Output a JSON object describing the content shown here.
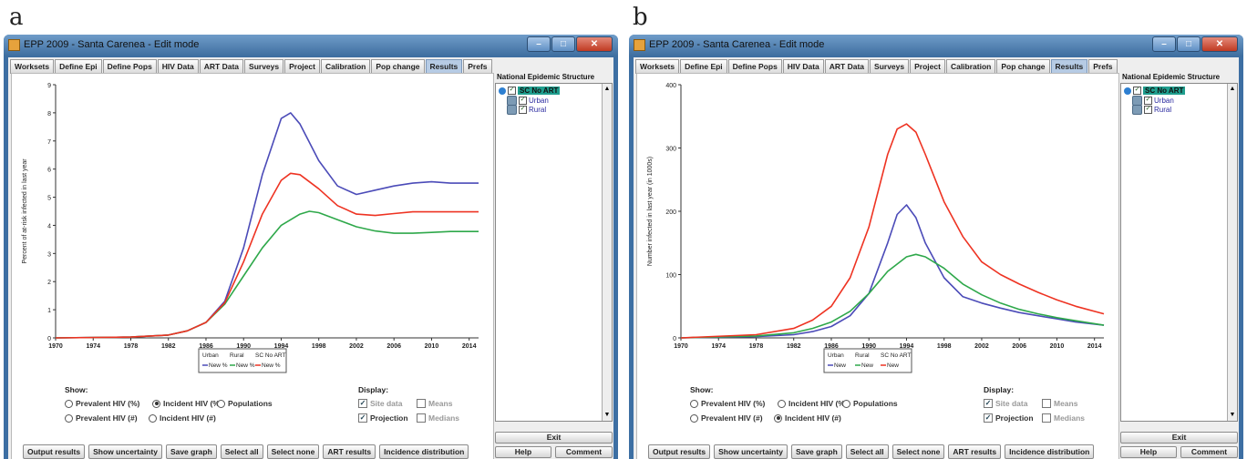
{
  "panels": [
    {
      "letter": "a",
      "window_title": "EPP 2009 - Santa Carenea - Edit mode",
      "tabs": [
        "Worksets",
        "Define Epi",
        "Define Pops",
        "HIV Data",
        "ART Data",
        "Surveys",
        "Project",
        "Calibration",
        "Pop change",
        "Results",
        "Prefs"
      ],
      "active_tab": "Results",
      "tree_title": "National Epidemic Structure",
      "tree_root": "SC No ART",
      "tree_children": [
        "Urban",
        "Rural"
      ],
      "show_label": "Show:",
      "show_options": [
        "Prevalent HIV (%)",
        "Incident HIV (%)",
        "Populations",
        "Prevalent HIV (#)",
        "Incident HIV (#)"
      ],
      "show_selected": "Incident HIV (%)",
      "display_label": "Display:",
      "display_options": [
        {
          "label": "Site data",
          "checked": true,
          "dim": true
        },
        {
          "label": "Means",
          "checked": false,
          "dim": true
        },
        {
          "label": "Projection",
          "checked": true,
          "dim": false
        },
        {
          "label": "Medians",
          "checked": false,
          "dim": true
        }
      ],
      "buttons": [
        "Output results",
        "Show uncertainty",
        "Save graph",
        "Select all",
        "Select none",
        "ART results",
        "Incidence distribution"
      ],
      "right_buttons": {
        "exit": "Exit",
        "help": "Help",
        "comment": "Comment"
      },
      "chart_data": {
        "type": "line",
        "ylabel": "Percent of at-risk infected in last year",
        "xlim": [
          1970,
          2015
        ],
        "ylim": [
          0,
          9
        ],
        "xticks": [
          1970,
          1974,
          1978,
          1982,
          1986,
          1990,
          1994,
          1998,
          2002,
          2006,
          2010,
          2014
        ],
        "yticks": [
          0,
          1,
          2,
          3,
          4,
          5,
          6,
          7,
          8,
          9
        ],
        "legend_headers": [
          "Urban",
          "Rural",
          "SC No ART"
        ],
        "series": [
          {
            "name": "New %",
            "color": "#4b4bb8",
            "points": [
              [
                1970,
                0
              ],
              [
                1978,
                0.03
              ],
              [
                1982,
                0.1
              ],
              [
                1984,
                0.25
              ],
              [
                1986,
                0.55
              ],
              [
                1988,
                1.3
              ],
              [
                1990,
                3.2
              ],
              [
                1992,
                5.8
              ],
              [
                1994,
                7.8
              ],
              [
                1995,
                8.0
              ],
              [
                1996,
                7.6
              ],
              [
                1998,
                6.3
              ],
              [
                2000,
                5.4
              ],
              [
                2002,
                5.1
              ],
              [
                2004,
                5.25
              ],
              [
                2006,
                5.4
              ],
              [
                2008,
                5.5
              ],
              [
                2010,
                5.55
              ],
              [
                2012,
                5.5
              ],
              [
                2015,
                5.5
              ]
            ]
          },
          {
            "name": "New %",
            "color": "#2ea84a",
            "points": [
              [
                1970,
                0
              ],
              [
                1978,
                0.03
              ],
              [
                1982,
                0.1
              ],
              [
                1984,
                0.25
              ],
              [
                1986,
                0.55
              ],
              [
                1988,
                1.2
              ],
              [
                1990,
                2.2
              ],
              [
                1992,
                3.2
              ],
              [
                1994,
                4.0
              ],
              [
                1996,
                4.4
              ],
              [
                1997,
                4.5
              ],
              [
                1998,
                4.45
              ],
              [
                2000,
                4.2
              ],
              [
                2002,
                3.95
              ],
              [
                2004,
                3.8
              ],
              [
                2006,
                3.72
              ],
              [
                2008,
                3.72
              ],
              [
                2010,
                3.75
              ],
              [
                2012,
                3.78
              ],
              [
                2015,
                3.78
              ]
            ]
          },
          {
            "name": "New %",
            "color": "#ee3322",
            "points": [
              [
                1970,
                0
              ],
              [
                1978,
                0.03
              ],
              [
                1982,
                0.1
              ],
              [
                1984,
                0.25
              ],
              [
                1986,
                0.55
              ],
              [
                1988,
                1.25
              ],
              [
                1990,
                2.7
              ],
              [
                1992,
                4.4
              ],
              [
                1994,
                5.6
              ],
              [
                1995,
                5.85
              ],
              [
                1996,
                5.8
              ],
              [
                1998,
                5.3
              ],
              [
                2000,
                4.7
              ],
              [
                2002,
                4.4
              ],
              [
                2004,
                4.35
              ],
              [
                2006,
                4.42
              ],
              [
                2008,
                4.48
              ],
              [
                2010,
                4.48
              ],
              [
                2012,
                4.48
              ],
              [
                2015,
                4.48
              ]
            ]
          }
        ]
      }
    },
    {
      "letter": "b",
      "window_title": "EPP 2009 - Santa Carenea - Edit mode",
      "tabs": [
        "Worksets",
        "Define Epi",
        "Define Pops",
        "HIV Data",
        "ART Data",
        "Surveys",
        "Project",
        "Calibration",
        "Pop change",
        "Results",
        "Prefs"
      ],
      "active_tab": "Results",
      "tree_title": "National Epidemic Structure",
      "tree_root": "SC No ART",
      "tree_children": [
        "Urban",
        "Rural"
      ],
      "show_label": "Show:",
      "show_options": [
        "Prevalent HIV (%)",
        "Incident HIV (%)",
        "Populations",
        "Prevalent HIV (#)",
        "Incident HIV (#)"
      ],
      "show_selected": "Incident HIV (#)",
      "display_label": "Display:",
      "display_options": [
        {
          "label": "Site data",
          "checked": true,
          "dim": true
        },
        {
          "label": "Means",
          "checked": false,
          "dim": true
        },
        {
          "label": "Projection",
          "checked": true,
          "dim": false
        },
        {
          "label": "Medians",
          "checked": false,
          "dim": true
        }
      ],
      "buttons": [
        "Output results",
        "Show uncertainty",
        "Save graph",
        "Select all",
        "Select none",
        "ART results",
        "Incidence distribution"
      ],
      "right_buttons": {
        "exit": "Exit",
        "help": "Help",
        "comment": "Comment"
      },
      "chart_data": {
        "type": "line",
        "ylabel": "Number infected in last year (in 1000s)",
        "xlim": [
          1970,
          2015
        ],
        "ylim": [
          0,
          400
        ],
        "xticks": [
          1970,
          1974,
          1978,
          1982,
          1986,
          1990,
          1994,
          1998,
          2002,
          2006,
          2010,
          2014
        ],
        "yticks": [
          0,
          100,
          200,
          300,
          400
        ],
        "legend_headers": [
          "Urban",
          "Rural",
          "SC No ART"
        ],
        "series": [
          {
            "name": "New",
            "color": "#4b4bb8",
            "points": [
              [
                1970,
                0
              ],
              [
                1978,
                2
              ],
              [
                1982,
                5
              ],
              [
                1984,
                10
              ],
              [
                1986,
                18
              ],
              [
                1988,
                35
              ],
              [
                1990,
                70
              ],
              [
                1992,
                150
              ],
              [
                1993,
                195
              ],
              [
                1994,
                210
              ],
              [
                1995,
                190
              ],
              [
                1996,
                150
              ],
              [
                1998,
                95
              ],
              [
                2000,
                65
              ],
              [
                2002,
                55
              ],
              [
                2004,
                47
              ],
              [
                2006,
                40
              ],
              [
                2008,
                35
              ],
              [
                2010,
                30
              ],
              [
                2012,
                25
              ],
              [
                2015,
                20
              ]
            ]
          },
          {
            "name": "New",
            "color": "#2ea84a",
            "points": [
              [
                1970,
                0
              ],
              [
                1978,
                3
              ],
              [
                1982,
                8
              ],
              [
                1984,
                15
              ],
              [
                1986,
                25
              ],
              [
                1988,
                42
              ],
              [
                1990,
                70
              ],
              [
                1992,
                105
              ],
              [
                1994,
                128
              ],
              [
                1995,
                132
              ],
              [
                1996,
                128
              ],
              [
                1998,
                110
              ],
              [
                2000,
                85
              ],
              [
                2002,
                68
              ],
              [
                2004,
                55
              ],
              [
                2006,
                45
              ],
              [
                2008,
                38
              ],
              [
                2010,
                32
              ],
              [
                2012,
                27
              ],
              [
                2015,
                20
              ]
            ]
          },
          {
            "name": "New",
            "color": "#ee3322",
            "points": [
              [
                1970,
                0
              ],
              [
                1978,
                5
              ],
              [
                1982,
                15
              ],
              [
                1984,
                28
              ],
              [
                1986,
                50
              ],
              [
                1988,
                95
              ],
              [
                1990,
                175
              ],
              [
                1992,
                290
              ],
              [
                1993,
                330
              ],
              [
                1994,
                338
              ],
              [
                1995,
                325
              ],
              [
                1996,
                290
              ],
              [
                1998,
                215
              ],
              [
                2000,
                160
              ],
              [
                2002,
                120
              ],
              [
                2004,
                100
              ],
              [
                2006,
                85
              ],
              [
                2008,
                72
              ],
              [
                2010,
                60
              ],
              [
                2012,
                50
              ],
              [
                2015,
                38
              ]
            ]
          }
        ]
      }
    }
  ]
}
